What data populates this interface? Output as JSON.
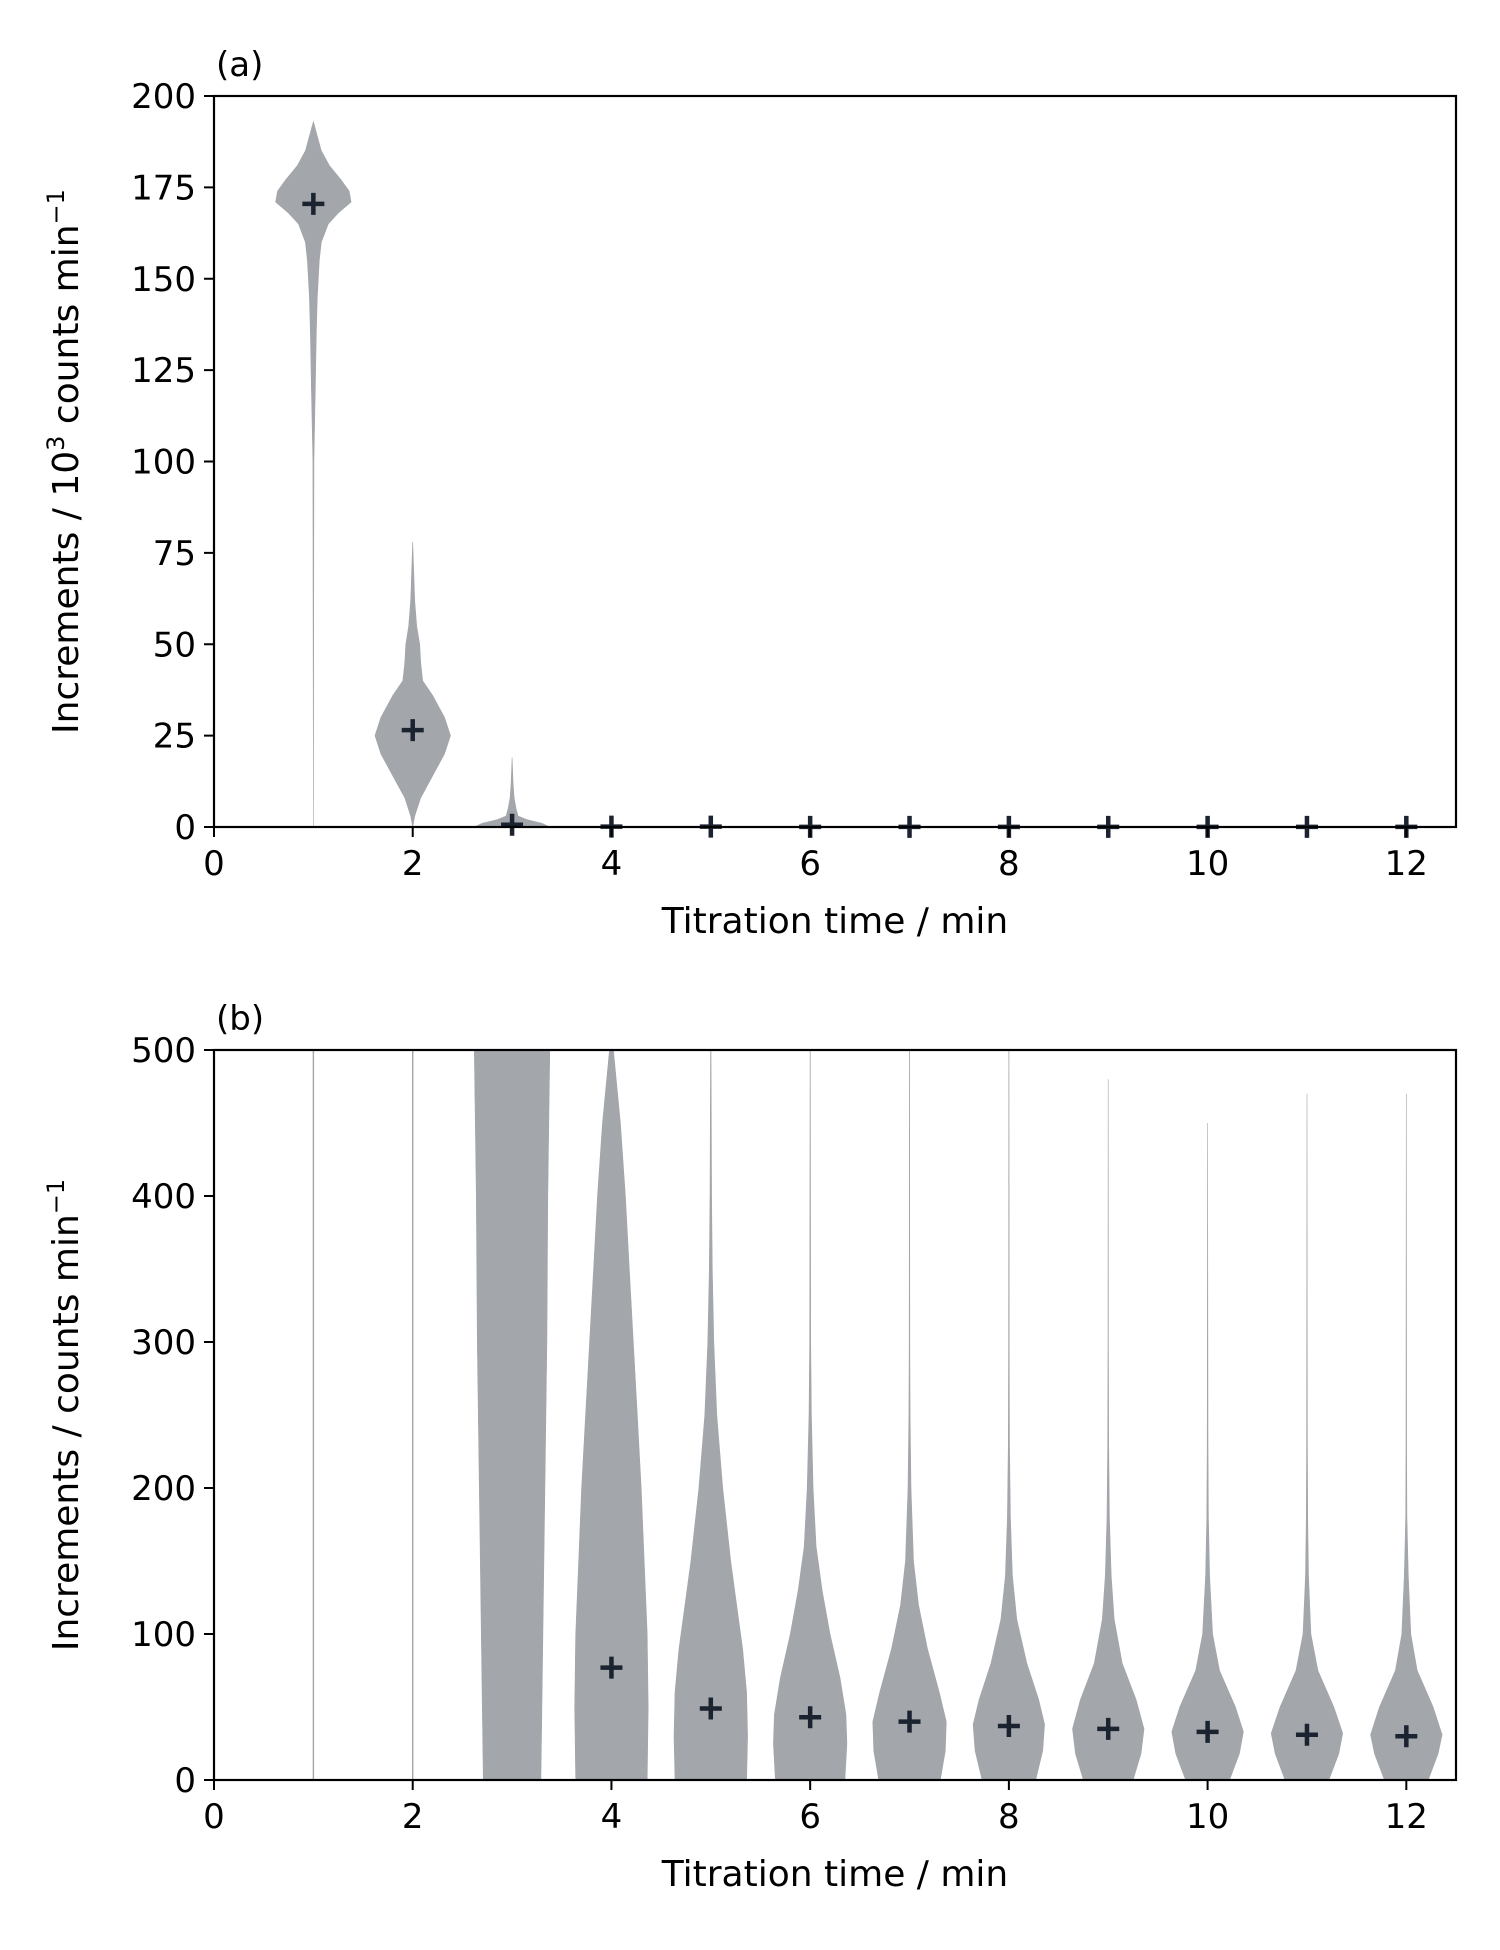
{
  "chart_data": [
    {
      "type": "violin",
      "panel_label": "(a)",
      "xlabel": "Titration time / min",
      "ylabel_main": "Increments / 10",
      "ylabel_sup": "3",
      "ylabel_rest": " counts min",
      "ylabel_unit_sup": "−1",
      "xlim": [
        0,
        12.5
      ],
      "ylim": [
        0,
        200
      ],
      "xticks": [
        0,
        2,
        4,
        6,
        8,
        10,
        12
      ],
      "yticks": [
        0,
        25,
        50,
        75,
        100,
        125,
        150,
        175,
        200
      ],
      "colors": {
        "violin": "#a3a6aa",
        "marker": "#1b2230"
      },
      "violins": [
        {
          "x": 0,
          "profile": [
            [
              0,
              0
            ],
            [
              1,
              0
            ]
          ]
        },
        {
          "x": 1,
          "profile": [
            [
              0,
              0
            ],
            [
              100,
              0.005
            ],
            [
              120,
              0.02
            ],
            [
              135,
              0.03
            ],
            [
              145,
              0.04
            ],
            [
              155,
              0.06
            ],
            [
              160,
              0.08
            ],
            [
              165,
              0.15
            ],
            [
              168,
              0.25
            ],
            [
              171,
              0.38
            ],
            [
              174,
              0.36
            ],
            [
              177,
              0.28
            ],
            [
              181,
              0.16
            ],
            [
              185,
              0.08
            ],
            [
              189,
              0.04
            ],
            [
              193,
              0.0
            ]
          ],
          "mean": 170.5
        },
        {
          "x": 2,
          "profile": [
            [
              0,
              0.0
            ],
            [
              3,
              0.02
            ],
            [
              8,
              0.08
            ],
            [
              14,
              0.2
            ],
            [
              20,
              0.32
            ],
            [
              25,
              0.38
            ],
            [
              30,
              0.32
            ],
            [
              36,
              0.2
            ],
            [
              40,
              0.1
            ],
            [
              45,
              0.08
            ],
            [
              50,
              0.07
            ],
            [
              55,
              0.04
            ],
            [
              62,
              0.02
            ],
            [
              70,
              0.01
            ],
            [
              78,
              0.0
            ]
          ],
          "mean": 26.5
        },
        {
          "x": 3,
          "profile": [
            [
              0,
              0.38
            ],
            [
              1,
              0.3
            ],
            [
              2,
              0.15
            ],
            [
              3,
              0.06
            ],
            [
              5,
              0.04
            ],
            [
              8,
              0.02
            ],
            [
              12,
              0.01
            ],
            [
              19,
              0.0
            ]
          ],
          "mean": 0.6
        },
        {
          "x": 4,
          "profile": [
            [
              0,
              0.04
            ],
            [
              1,
              0.0
            ]
          ],
          "mean": 0.1
        },
        {
          "x": 5,
          "profile": [
            [
              0,
              0.04
            ],
            [
              1,
              0.0
            ]
          ],
          "mean": 0.1
        },
        {
          "x": 6,
          "profile": [
            [
              0,
              0.03
            ],
            [
              1,
              0.0
            ]
          ],
          "mean": 0.05
        },
        {
          "x": 7,
          "profile": [
            [
              0,
              0.03
            ],
            [
              1,
              0.0
            ]
          ],
          "mean": 0.05
        },
        {
          "x": 8,
          "profile": [
            [
              0,
              0.03
            ],
            [
              1,
              0.0
            ]
          ],
          "mean": 0.05
        },
        {
          "x": 9,
          "profile": [
            [
              0,
              0.03
            ],
            [
              1,
              0.0
            ]
          ],
          "mean": 0.05
        },
        {
          "x": 10,
          "profile": [
            [
              0,
              0.03
            ],
            [
              1,
              0.0
            ]
          ],
          "mean": 0.05
        },
        {
          "x": 11,
          "profile": [
            [
              0,
              0.03
            ],
            [
              1,
              0.0
            ]
          ],
          "mean": 0.05
        },
        {
          "x": 12,
          "profile": [
            [
              0,
              0.03
            ],
            [
              1,
              0.0
            ]
          ],
          "mean": 0.05
        }
      ]
    },
    {
      "type": "violin",
      "panel_label": "(b)",
      "xlabel": "Titration time / min",
      "ylabel_main": "Increments / counts min",
      "ylabel_sup": "",
      "ylabel_rest": "",
      "ylabel_unit_sup": "−1",
      "xlim": [
        0,
        12.5
      ],
      "ylim": [
        0,
        500
      ],
      "xticks": [
        0,
        2,
        4,
        6,
        8,
        10,
        12
      ],
      "yticks": [
        0,
        100,
        200,
        300,
        400,
        500
      ],
      "colors": {
        "violin": "#a3a6aa",
        "marker": "#1b2230"
      },
      "violins": [
        {
          "x": 0,
          "profile": [
            [
              0,
              0
            ],
            [
              1,
              0
            ]
          ]
        },
        {
          "x": 1,
          "profile": [
            [
              0,
              0.004
            ],
            [
              500,
              0.004
            ]
          ]
        },
        {
          "x": 2,
          "profile": [
            [
              0,
              0.004
            ],
            [
              500,
              0.004
            ]
          ]
        },
        {
          "x": 3,
          "profile": [
            [
              0,
              0.29
            ],
            [
              100,
              0.31
            ],
            [
              200,
              0.33
            ],
            [
              300,
              0.35
            ],
            [
              400,
              0.36
            ],
            [
              500,
              0.38
            ]
          ]
        },
        {
          "x": 4,
          "profile": [
            [
              0,
              0.36
            ],
            [
              50,
              0.37
            ],
            [
              100,
              0.36
            ],
            [
              150,
              0.33
            ],
            [
              200,
              0.3
            ],
            [
              250,
              0.26
            ],
            [
              300,
              0.22
            ],
            [
              350,
              0.18
            ],
            [
              400,
              0.14
            ],
            [
              450,
              0.09
            ],
            [
              500,
              0.02
            ]
          ],
          "mean": 77
        },
        {
          "x": 5,
          "profile": [
            [
              0,
              0.36
            ],
            [
              30,
              0.37
            ],
            [
              60,
              0.36
            ],
            [
              90,
              0.32
            ],
            [
              120,
              0.26
            ],
            [
              150,
              0.2
            ],
            [
              200,
              0.12
            ],
            [
              250,
              0.06
            ],
            [
              300,
              0.03
            ],
            [
              350,
              0.015
            ],
            [
              400,
              0.008
            ],
            [
              500,
              0.002
            ]
          ],
          "mean": 49
        },
        {
          "x": 6,
          "profile": [
            [
              0,
              0.35
            ],
            [
              25,
              0.37
            ],
            [
              45,
              0.36
            ],
            [
              70,
              0.3
            ],
            [
              100,
              0.2
            ],
            [
              130,
              0.12
            ],
            [
              160,
              0.06
            ],
            [
              200,
              0.03
            ],
            [
              250,
              0.012
            ],
            [
              300,
              0.005
            ],
            [
              400,
              0.003
            ],
            [
              500,
              0.001
            ]
          ],
          "mean": 43
        },
        {
          "x": 7,
          "profile": [
            [
              0,
              0.31
            ],
            [
              20,
              0.36
            ],
            [
              40,
              0.37
            ],
            [
              60,
              0.3
            ],
            [
              90,
              0.18
            ],
            [
              120,
              0.09
            ],
            [
              150,
              0.04
            ],
            [
              200,
              0.015
            ],
            [
              250,
              0.006
            ],
            [
              300,
              0.003
            ],
            [
              400,
              0.002
            ],
            [
              500,
              0.001
            ]
          ],
          "mean": 40
        },
        {
          "x": 8,
          "profile": [
            [
              0,
              0.27
            ],
            [
              20,
              0.34
            ],
            [
              38,
              0.36
            ],
            [
              55,
              0.3
            ],
            [
              80,
              0.18
            ],
            [
              110,
              0.08
            ],
            [
              140,
              0.035
            ],
            [
              180,
              0.015
            ],
            [
              230,
              0.006
            ],
            [
              300,
              0.003
            ],
            [
              400,
              0.002
            ],
            [
              500,
              0.001
            ]
          ],
          "mean": 37
        },
        {
          "x": 9,
          "profile": [
            [
              0,
              0.25
            ],
            [
              18,
              0.33
            ],
            [
              35,
              0.36
            ],
            [
              55,
              0.28
            ],
            [
              80,
              0.14
            ],
            [
              110,
              0.06
            ],
            [
              140,
              0.03
            ],
            [
              180,
              0.012
            ],
            [
              230,
              0.005
            ],
            [
              300,
              0.002
            ],
            [
              400,
              0.001
            ],
            [
              480,
              0.0
            ]
          ],
          "mean": 35
        },
        {
          "x": 10,
          "profile": [
            [
              0,
              0.22
            ],
            [
              18,
              0.32
            ],
            [
              33,
              0.36
            ],
            [
              50,
              0.28
            ],
            [
              75,
              0.12
            ],
            [
              100,
              0.05
            ],
            [
              140,
              0.02
            ],
            [
              180,
              0.008
            ],
            [
              230,
              0.004
            ],
            [
              330,
              0.002
            ],
            [
              450,
              0.0
            ]
          ],
          "mean": 33
        },
        {
          "x": 11,
          "profile": [
            [
              0,
              0.22
            ],
            [
              18,
              0.32
            ],
            [
              32,
              0.36
            ],
            [
              50,
              0.27
            ],
            [
              75,
              0.11
            ],
            [
              100,
              0.04
            ],
            [
              140,
              0.015
            ],
            [
              180,
              0.007
            ],
            [
              230,
              0.004
            ],
            [
              330,
              0.002
            ],
            [
              470,
              0.0
            ]
          ],
          "mean": 31
        },
        {
          "x": 12,
          "profile": [
            [
              0,
              0.22
            ],
            [
              18,
              0.32
            ],
            [
              31,
              0.36
            ],
            [
              50,
              0.27
            ],
            [
              75,
              0.11
            ],
            [
              100,
              0.045
            ],
            [
              140,
              0.02
            ],
            [
              180,
              0.006
            ],
            [
              230,
              0.003
            ],
            [
              330,
              0.002
            ],
            [
              470,
              0.0
            ]
          ],
          "mean": 30
        }
      ]
    }
  ]
}
